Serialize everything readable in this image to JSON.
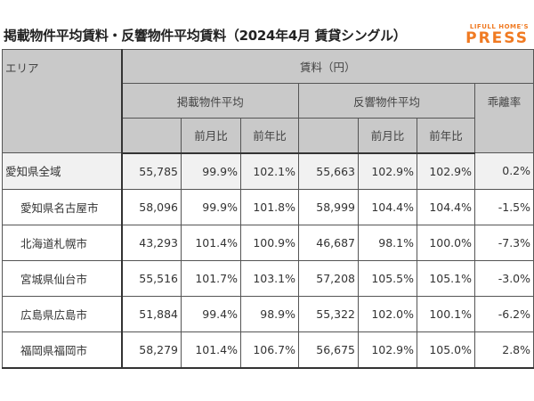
{
  "title": "掲載物件平均賃料・反響物件平均賃料（2024年4月 賃貸シングル）",
  "logo": {
    "line1": "LIFULL HOME'S",
    "line2": "PRESS",
    "color": "#f07a22"
  },
  "header": {
    "area": "エリア",
    "rent": "賃料（円）",
    "listed": "掲載物件平均",
    "inquiry": "反響物件平均",
    "gap": "乖離率",
    "mom": "前月比",
    "yoy": "前年比"
  },
  "rows": [
    {
      "area": "愛知県全域",
      "listed": "55,785",
      "listed_mom": "99.9%",
      "listed_yoy": "102.1%",
      "inquiry": "55,663",
      "inquiry_mom": "102.9%",
      "inquiry_yoy": "102.9%",
      "gap": "0.2%"
    },
    {
      "area": "愛知県名古屋市",
      "listed": "58,096",
      "listed_mom": "99.9%",
      "listed_yoy": "101.8%",
      "inquiry": "58,999",
      "inquiry_mom": "104.4%",
      "inquiry_yoy": "104.4%",
      "gap": "-1.5%"
    },
    {
      "area": "北海道札幌市",
      "listed": "43,293",
      "listed_mom": "101.4%",
      "listed_yoy": "100.9%",
      "inquiry": "46,687",
      "inquiry_mom": "98.1%",
      "inquiry_yoy": "100.0%",
      "gap": "-7.3%"
    },
    {
      "area": "宮城県仙台市",
      "listed": "55,516",
      "listed_mom": "101.7%",
      "listed_yoy": "103.1%",
      "inquiry": "57,208",
      "inquiry_mom": "105.5%",
      "inquiry_yoy": "105.1%",
      "gap": "-3.0%"
    },
    {
      "area": "広島県広島市",
      "listed": "51,884",
      "listed_mom": "99.4%",
      "listed_yoy": "98.9%",
      "inquiry": "55,322",
      "inquiry_mom": "102.0%",
      "inquiry_yoy": "100.1%",
      "gap": "-6.2%"
    },
    {
      "area": "福岡県福岡市",
      "listed": "58,279",
      "listed_mom": "101.4%",
      "listed_yoy": "106.7%",
      "inquiry": "56,675",
      "inquiry_mom": "102.9%",
      "inquiry_yoy": "105.0%",
      "gap": "2.8%"
    }
  ]
}
